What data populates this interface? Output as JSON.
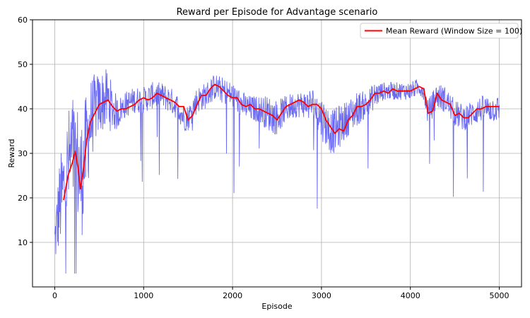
{
  "chart_data": {
    "type": "line",
    "title": "Reward per Episode for Advantage scenario",
    "xlabel": "Episode",
    "ylabel": "Reward",
    "xlim": [
      -250,
      5250
    ],
    "ylim": [
      0,
      60
    ],
    "xticks": [
      0,
      1000,
      2000,
      3000,
      4000,
      5000
    ],
    "yticks": [
      10,
      20,
      30,
      40,
      50,
      60
    ],
    "grid": true,
    "legend_position": "top-right",
    "series": [
      {
        "name": "",
        "color": "#5a5af0",
        "style": "raw-noisy",
        "x": [
          0,
          50,
          100,
          150,
          200,
          250,
          300,
          350,
          400,
          450,
          500,
          550,
          600,
          650,
          700,
          750,
          800,
          900,
          1000,
          1100,
          1200,
          1300,
          1400,
          1450,
          1500,
          1600,
          1700,
          1800,
          1900,
          2000,
          2100,
          2200,
          2300,
          2400,
          2500,
          2600,
          2700,
          2800,
          2900,
          3000,
          3100,
          3150,
          3200,
          3300,
          3400,
          3500,
          3600,
          3700,
          3800,
          3900,
          4000,
          4100,
          4150,
          4200,
          4300,
          4400,
          4500,
          4600,
          4700,
          4800,
          4900,
          5000
        ],
        "y": [
          10,
          18,
          22,
          27,
          30,
          28,
          24,
          31,
          37,
          40,
          41,
          42,
          42,
          40,
          39,
          40,
          41,
          42,
          42,
          43,
          43,
          42,
          40,
          38,
          38,
          42,
          43,
          45,
          44,
          43,
          41,
          40,
          40,
          39,
          38,
          40,
          41,
          41,
          41,
          38,
          35,
          35,
          36,
          38,
          40,
          41,
          43,
          44,
          44,
          44,
          44,
          45,
          44,
          39,
          43,
          42,
          39,
          38,
          39,
          40,
          40,
          40
        ],
        "spread": [
          6,
          10,
          12,
          13,
          14,
          14,
          14,
          12,
          10,
          8,
          7,
          7,
          7,
          5,
          4,
          3,
          3,
          3,
          3,
          3,
          3,
          3,
          3,
          3,
          3,
          3,
          3,
          3,
          3,
          3,
          3,
          3,
          3,
          4,
          4,
          3,
          3,
          3,
          4,
          5,
          5,
          5,
          5,
          4,
          4,
          3,
          3,
          2,
          2,
          2,
          2,
          2,
          2,
          3,
          3,
          3,
          3,
          3,
          3,
          3,
          3,
          3
        ]
      },
      {
        "name": "Mean Reward (Window Size = 100)",
        "color": "#ff0000",
        "style": "line",
        "x": [
          100,
          150,
          200,
          230,
          260,
          290,
          320,
          360,
          400,
          450,
          500,
          550,
          600,
          650,
          700,
          750,
          800,
          850,
          900,
          950,
          1000,
          1050,
          1100,
          1150,
          1200,
          1250,
          1300,
          1350,
          1400,
          1450,
          1500,
          1550,
          1600,
          1650,
          1700,
          1750,
          1800,
          1850,
          1900,
          1950,
          2000,
          2050,
          2100,
          2150,
          2200,
          2250,
          2300,
          2350,
          2400,
          2450,
          2500,
          2550,
          2600,
          2650,
          2700,
          2750,
          2800,
          2850,
          2900,
          2950,
          3000,
          3050,
          3100,
          3150,
          3200,
          3250,
          3300,
          3350,
          3400,
          3450,
          3500,
          3550,
          3600,
          3650,
          3700,
          3750,
          3800,
          3850,
          3900,
          3950,
          4000,
          4050,
          4100,
          4150,
          4200,
          4250,
          4300,
          4350,
          4400,
          4450,
          4500,
          4550,
          4600,
          4650,
          4700,
          4750,
          4800,
          4850,
          4900,
          4950,
          5000
        ],
        "y": [
          19.5,
          25,
          28,
          30.5,
          27,
          22,
          26,
          33,
          37,
          39,
          41,
          41.5,
          42,
          40.5,
          39.5,
          40,
          40,
          40.5,
          41,
          42,
          42.5,
          42,
          42.5,
          43.5,
          43,
          42.5,
          42,
          41.5,
          40.5,
          40.5,
          37.5,
          38.5,
          41,
          43,
          43,
          44.5,
          45.5,
          45,
          44,
          43,
          42.5,
          42.5,
          41,
          40.5,
          41,
          40,
          40,
          39.5,
          39,
          38.5,
          37.5,
          39,
          40.5,
          41,
          41.5,
          42,
          41.5,
          40.5,
          41,
          41,
          40,
          37.5,
          36,
          34.5,
          35.5,
          35,
          37.5,
          38.5,
          40.5,
          40.5,
          41,
          42,
          43.5,
          43.5,
          44,
          43.5,
          44.5,
          44,
          44,
          44,
          44,
          44.5,
          45,
          44.5,
          39,
          39.5,
          43.5,
          42,
          41.5,
          41,
          38.5,
          39,
          38,
          38,
          39,
          40,
          40,
          40.5,
          40.5,
          40.5,
          40.5
        ]
      }
    ]
  }
}
